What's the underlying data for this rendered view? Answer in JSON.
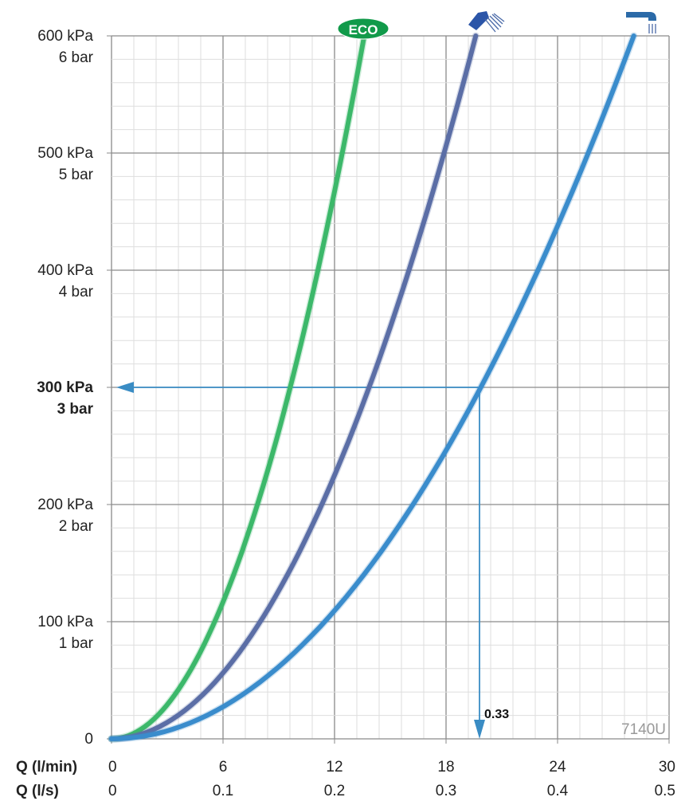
{
  "chart_data": {
    "type": "line",
    "xlabel": [
      "Q (l/min)",
      "Q (l/s)"
    ],
    "xlim": [
      0,
      30
    ],
    "ylim": [
      0,
      600
    ],
    "x_ticks_lmin": [
      "0",
      "6",
      "12",
      "18",
      "24",
      "30"
    ],
    "x_ticks_ls": [
      "0",
      "0.1",
      "0.2",
      "0.3",
      "0.4",
      "0.5"
    ],
    "y_ticks": [
      {
        "value": 0,
        "kpa": "0",
        "bar": ""
      },
      {
        "value": 100,
        "kpa": "100 kPa",
        "bar": "1 bar"
      },
      {
        "value": 200,
        "kpa": "200 kPa",
        "bar": "2 bar"
      },
      {
        "value": 300,
        "kpa": "300 kPa",
        "bar": "3 bar",
        "bold": true
      },
      {
        "value": 400,
        "kpa": "400 kPa",
        "bar": "4 bar"
      },
      {
        "value": 500,
        "kpa": "500 kPa",
        "bar": "5 bar"
      },
      {
        "value": 600,
        "kpa": "600 kPa",
        "bar": "6 bar"
      }
    ],
    "grid": true,
    "series": [
      {
        "label_icon": "eco-badge",
        "icon_text": "ECO",
        "color": "#3cb86a",
        "x": [
          0,
          2,
          4,
          6,
          8,
          10,
          12,
          13.6
        ],
        "y": [
          0,
          13,
          52,
          117,
          208,
          324,
          467,
          600
        ]
      },
      {
        "label_icon": "handshower-icon",
        "color": "#5b6ea6",
        "x": [
          0,
          3,
          6,
          9,
          12,
          15,
          18,
          19.6
        ],
        "y": [
          0,
          14,
          56,
          127,
          225,
          351,
          506,
          600
        ]
      },
      {
        "label_icon": "spout-icon",
        "color": "#3a8ccc",
        "x": [
          0,
          4,
          8,
          12,
          16,
          20,
          24,
          28.1
        ],
        "y": [
          0,
          12,
          49,
          109,
          195,
          304,
          438,
          600
        ]
      }
    ],
    "annotation": {
      "pressure": 300,
      "flow_lmin": 19.8,
      "label": "0.33",
      "color": "#3a8cc4"
    },
    "watermark": "7140U"
  }
}
